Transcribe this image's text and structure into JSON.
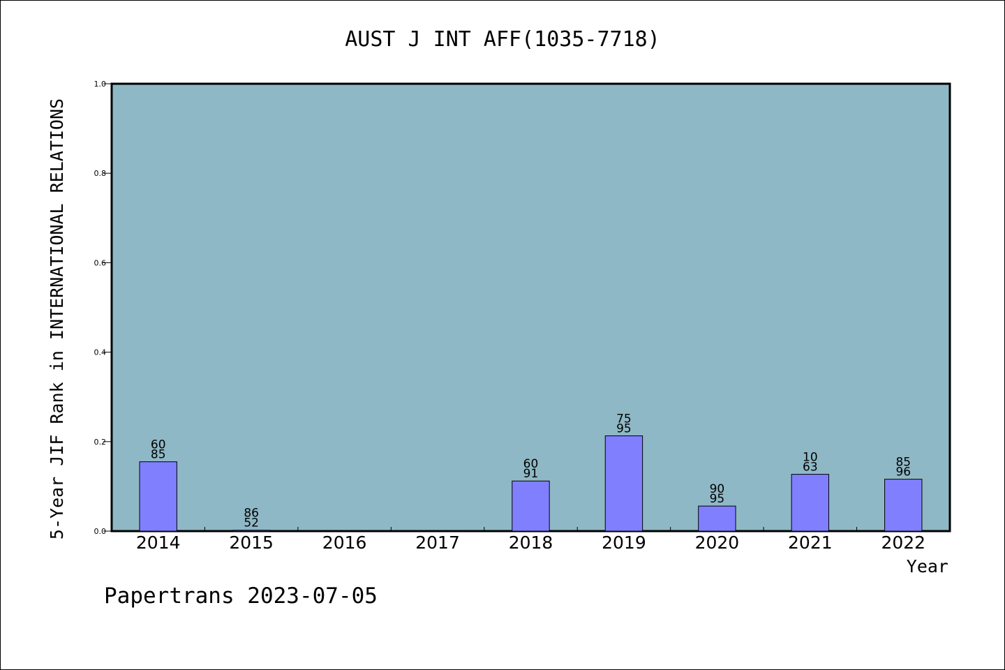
{
  "chart_data": {
    "type": "bar",
    "title": "AUST J INT AFF(1035-7718)",
    "ylabel": "5-Year JIF Rank in INTERNATIONAL RELATIONS",
    "xlabel": "Year",
    "footer": "Papertrans 2023-07-05",
    "ylim": [
      0.0,
      1.0
    ],
    "yticks": [
      "0.0",
      "0.2",
      "0.4",
      "0.6",
      "0.8",
      "1.0"
    ],
    "categories": [
      "2014",
      "2015",
      "2016",
      "2017",
      "2018",
      "2019",
      "2020",
      "2021",
      "2022"
    ],
    "values": [
      0.155,
      0.002,
      null,
      null,
      0.112,
      0.213,
      0.056,
      0.127,
      0.116
    ],
    "rank_labels": [
      [
        "60",
        "85"
      ],
      [
        "86",
        "52"
      ],
      null,
      null,
      [
        "60",
        "91"
      ],
      [
        "75",
        "95"
      ],
      [
        "90",
        "95"
      ],
      [
        "10",
        "63"
      ],
      [
        "85",
        "96"
      ]
    ],
    "colors": {
      "plot_bg": "#8fb8c6",
      "bar": "#8080ff",
      "axis": "#000000"
    },
    "grid": false,
    "legend": "none"
  }
}
